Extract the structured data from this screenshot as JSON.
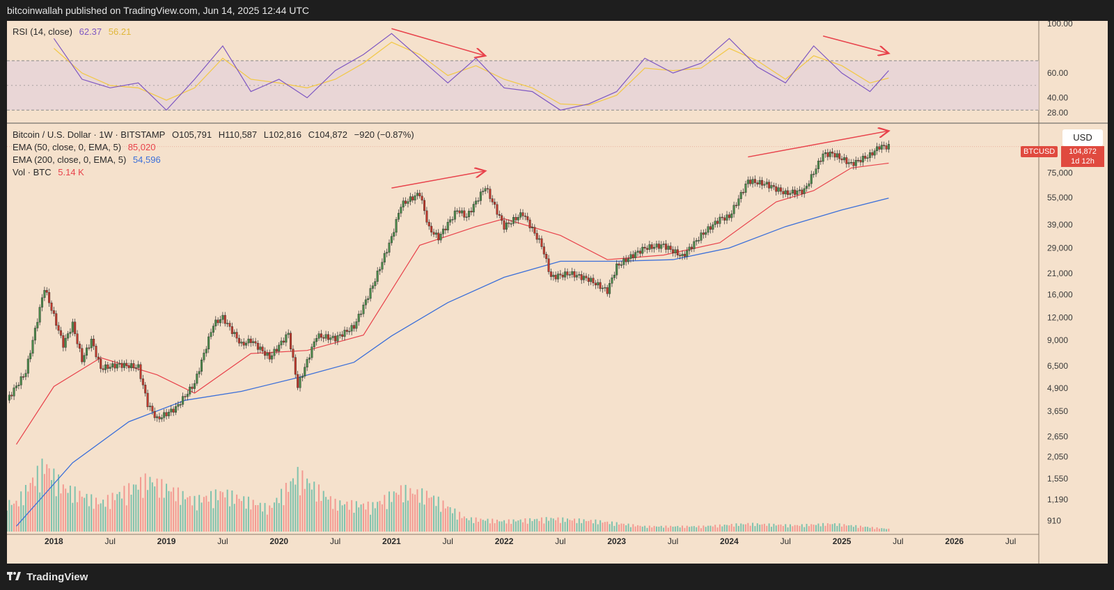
{
  "header": {
    "publisher_text": "bitcoinwallah published on TradingView.com, Jun 14, 2025 12:44 UTC"
  },
  "footer": {
    "logo_text": "TradingView"
  },
  "rsi_legend": {
    "label": "RSI (14, close)",
    "rsi_value": "62.37",
    "ma_value": "56.21"
  },
  "main_legend": {
    "symbol": "Bitcoin / U.S. Dollar · 1W · BITSTAMP",
    "open": "O105,791",
    "high": "H110,587",
    "low": "L102,816",
    "close": "C104,872",
    "change": "−920 (−0.87%)",
    "ema50_label": "EMA (50, close, 0, EMA, 5)",
    "ema50_value": "85,020",
    "ema200_label": "EMA (200, close, 0, EMA, 5)",
    "ema200_value": "54,596",
    "vol_label": "Vol · BTC",
    "vol_value": "5.14 K"
  },
  "price_scale": {
    "currency": "USD",
    "symbol_tag": "BTCUSD",
    "last_price": "104,872",
    "countdown": "1d 12h"
  },
  "colors": {
    "background": "#f5e1cc",
    "candle_up": "#4c8a4a",
    "candle_down": "#c0392b",
    "ema50": "#e8424b",
    "ema200": "#3b6fd9",
    "rsi": "#7e57c2",
    "rsi_ma": "#f2c94c",
    "annotation_arrow": "#e8424b",
    "volume_up": "#7fc2ad",
    "volume_down": "#f39a92"
  },
  "chart_data": [
    {
      "type": "line",
      "name": "RSI",
      "ylim": [
        20,
        100
      ],
      "y_ticks": [
        "100.00",
        "60.00",
        "40.00",
        "28.00"
      ],
      "y_tick_values": [
        100,
        60,
        40,
        28
      ],
      "bands": [
        30,
        70
      ],
      "x": [
        "2018-01",
        "2018-04",
        "2018-07",
        "2018-10",
        "2019-01",
        "2019-04",
        "2019-07",
        "2019-10",
        "2020-01",
        "2020-04",
        "2020-07",
        "2020-10",
        "2021-01",
        "2021-04",
        "2021-07",
        "2021-10",
        "2022-01",
        "2022-04",
        "2022-07",
        "2022-10",
        "2023-01",
        "2023-04",
        "2023-07",
        "2023-10",
        "2024-01",
        "2024-04",
        "2024-07",
        "2024-10",
        "2025-01",
        "2025-04",
        "2025-06"
      ],
      "series": [
        {
          "values": [
            88,
            55,
            48,
            52,
            30,
            55,
            82,
            45,
            55,
            40,
            62,
            75,
            92,
            72,
            52,
            72,
            48,
            45,
            30,
            35,
            45,
            72,
            60,
            68,
            88,
            65,
            52,
            82,
            60,
            45,
            62
          ]
        },
        {
          "values": [
            80,
            60,
            50,
            48,
            38,
            48,
            72,
            55,
            52,
            48,
            55,
            68,
            85,
            75,
            58,
            66,
            55,
            48,
            35,
            34,
            42,
            64,
            62,
            64,
            80,
            70,
            55,
            74,
            66,
            52,
            56
          ]
        }
      ],
      "annotations": [
        {
          "type": "arrow",
          "from": [
            "2021-01",
            96
          ],
          "to": [
            "2021-11",
            74
          ]
        },
        {
          "type": "arrow",
          "from": [
            "2024-11",
            90
          ],
          "to": [
            "2025-06",
            76
          ]
        }
      ]
    },
    {
      "type": "candlestick",
      "name": "BTCUSD",
      "y_scale": "log",
      "ylim": [
        780,
        140000
      ],
      "y_ticks": [
        "75,000",
        "55,000",
        "39,000",
        "29,000",
        "21,000",
        "16,000",
        "12,000",
        "9,000",
        "6,500",
        "4,900",
        "3,650",
        "2,650",
        "2,050",
        "1,550",
        "1,190",
        "910"
      ],
      "y_tick_values": [
        75000,
        55000,
        39000,
        29000,
        21000,
        16000,
        12000,
        9000,
        6500,
        4900,
        3650,
        2650,
        2050,
        1550,
        1190,
        910
      ],
      "x_ticks": [
        "2018",
        "Jul",
        "2019",
        "Jul",
        "2020",
        "Jul",
        "2021",
        "Jul",
        "2022",
        "Jul",
        "2023",
        "Jul",
        "2024",
        "Jul",
        "2025",
        "Jul",
        "2026",
        "Jul"
      ],
      "x_tick_dates": [
        "2018-01",
        "2018-07",
        "2019-01",
        "2019-07",
        "2020-01",
        "2020-07",
        "2021-01",
        "2021-07",
        "2022-01",
        "2022-07",
        "2023-01",
        "2023-07",
        "2024-01",
        "2024-07",
        "2025-01",
        "2025-07",
        "2026-01",
        "2026-07"
      ],
      "x_range": [
        "2017-08",
        "2026-10"
      ],
      "close_path": [
        [
          "2017-08",
          4200
        ],
        [
          "2017-10",
          6000
        ],
        [
          "2017-12",
          17500
        ],
        [
          "2018-02",
          8500
        ],
        [
          "2018-03",
          11000
        ],
        [
          "2018-04",
          7000
        ],
        [
          "2018-05",
          9000
        ],
        [
          "2018-06",
          6300
        ],
        [
          "2018-08",
          6600
        ],
        [
          "2018-10",
          6400
        ],
        [
          "2018-11",
          4000
        ],
        [
          "2018-12",
          3300
        ],
        [
          "2019-02",
          3800
        ],
        [
          "2019-04",
          5200
        ],
        [
          "2019-06",
          11000
        ],
        [
          "2019-07",
          12000
        ],
        [
          "2019-09",
          8500
        ],
        [
          "2019-10",
          9000
        ],
        [
          "2019-12",
          7200
        ],
        [
          "2020-02",
          9800
        ],
        [
          "2020-03",
          5000
        ],
        [
          "2020-05",
          9500
        ],
        [
          "2020-07",
          9200
        ],
        [
          "2020-09",
          10700
        ],
        [
          "2020-11",
          18000
        ],
        [
          "2021-01",
          33000
        ],
        [
          "2021-02",
          50000
        ],
        [
          "2021-04",
          58000
        ],
        [
          "2021-05",
          37000
        ],
        [
          "2021-06",
          33000
        ],
        [
          "2021-08",
          47000
        ],
        [
          "2021-09",
          43000
        ],
        [
          "2021-11",
          63000
        ],
        [
          "2022-01",
          38000
        ],
        [
          "2022-03",
          45000
        ],
        [
          "2022-05",
          30000
        ],
        [
          "2022-06",
          20000
        ],
        [
          "2022-08",
          21000
        ],
        [
          "2022-10",
          19500
        ],
        [
          "2022-12",
          16800
        ],
        [
          "2023-01",
          23000
        ],
        [
          "2023-03",
          27000
        ],
        [
          "2023-04",
          29000
        ],
        [
          "2023-06",
          30000
        ],
        [
          "2023-08",
          26000
        ],
        [
          "2023-10",
          34000
        ],
        [
          "2023-12",
          42000
        ],
        [
          "2024-01",
          43000
        ],
        [
          "2024-03",
          68000
        ],
        [
          "2024-05",
          65000
        ],
        [
          "2024-07",
          58000
        ],
        [
          "2024-09",
          60000
        ],
        [
          "2024-11",
          95000
        ],
        [
          "2024-12",
          96000
        ],
        [
          "2025-02",
          84000
        ],
        [
          "2025-04",
          94000
        ],
        [
          "2025-05",
          105000
        ],
        [
          "2025-06",
          104872
        ]
      ],
      "ema50_path": [
        [
          "2017-09",
          2400
        ],
        [
          "2018-01",
          5000
        ],
        [
          "2018-06",
          7200
        ],
        [
          "2018-12",
          5800
        ],
        [
          "2019-04",
          4600
        ],
        [
          "2019-10",
          7600
        ],
        [
          "2020-04",
          7900
        ],
        [
          "2020-10",
          9600
        ],
        [
          "2021-04",
          30000
        ],
        [
          "2021-10",
          38000
        ],
        [
          "2022-01",
          42000
        ],
        [
          "2022-07",
          34000
        ],
        [
          "2022-12",
          25000
        ],
        [
          "2023-06",
          26500
        ],
        [
          "2023-12",
          31000
        ],
        [
          "2024-06",
          52000
        ],
        [
          "2024-10",
          60000
        ],
        [
          "2025-02",
          80000
        ],
        [
          "2025-06",
          85020
        ]
      ],
      "ema200_path": [
        [
          "2017-09",
          850
        ],
        [
          "2018-03",
          1900
        ],
        [
          "2018-09",
          3200
        ],
        [
          "2019-03",
          4200
        ],
        [
          "2019-09",
          4700
        ],
        [
          "2020-03",
          5600
        ],
        [
          "2020-09",
          6800
        ],
        [
          "2021-01",
          9500
        ],
        [
          "2021-07",
          14500
        ],
        [
          "2022-01",
          20000
        ],
        [
          "2022-07",
          24500
        ],
        [
          "2023-01",
          24500
        ],
        [
          "2023-07",
          25000
        ],
        [
          "2024-01",
          29000
        ],
        [
          "2024-07",
          38000
        ],
        [
          "2025-01",
          47000
        ],
        [
          "2025-06",
          54596
        ]
      ],
      "annotations": [
        {
          "type": "arrow",
          "from": [
            "2021-01",
            62000
          ],
          "to": [
            "2021-11",
            77000
          ]
        },
        {
          "type": "arrow",
          "from": [
            "2024-03",
            92000
          ],
          "to": [
            "2025-06",
            128000
          ]
        }
      ]
    },
    {
      "type": "bar",
      "name": "Vol · BTC",
      "note": "volume histogram",
      "x": [
        "2017-09",
        "2017-12",
        "2018-02",
        "2018-06",
        "2018-11",
        "2019-04",
        "2019-07",
        "2019-12",
        "2020-03",
        "2020-07",
        "2020-11",
        "2021-02",
        "2021-05",
        "2021-09",
        "2022-01",
        "2022-06",
        "2022-11",
        "2023-04",
        "2023-10",
        "2024-03",
        "2024-08",
        "2024-12",
        "2025-03",
        "2025-06"
      ],
      "values": [
        55,
        130,
        85,
        55,
        100,
        60,
        75,
        45,
        110,
        55,
        50,
        80,
        70,
        25,
        20,
        25,
        20,
        10,
        10,
        15,
        12,
        15,
        10,
        5
      ],
      "unit": "K"
    }
  ]
}
